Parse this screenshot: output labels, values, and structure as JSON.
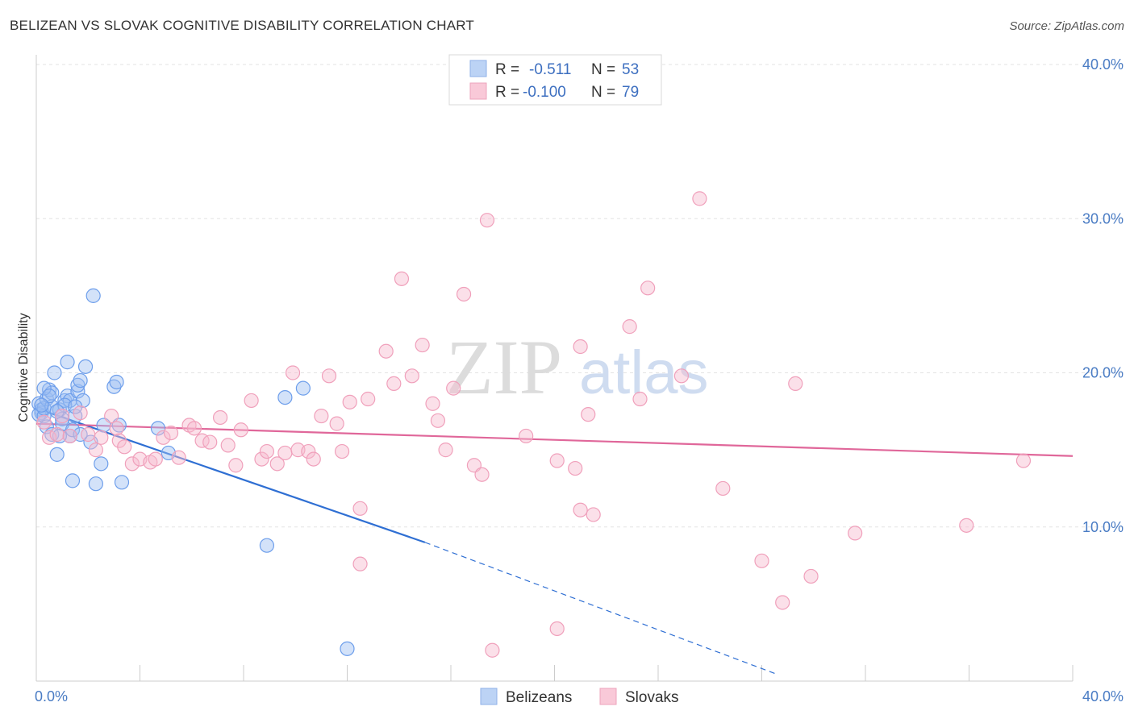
{
  "title": "BELIZEAN VS SLOVAK COGNITIVE DISABILITY CORRELATION CHART",
  "source": "Source: ZipAtlas.com",
  "watermark": {
    "zip": "ZIP",
    "atlas": "atlas"
  },
  "legend": {
    "r_label": "R =",
    "n_label": "N =",
    "rows": [
      {
        "series": "Belizeans",
        "r": "-0.511",
        "n": "53"
      },
      {
        "series": "Slovaks",
        "r": "-0.100",
        "n": "79"
      }
    ]
  },
  "chart_data": {
    "type": "scatter",
    "title": "BELIZEAN VS SLOVAK COGNITIVE DISABILITY CORRELATION CHART",
    "xlabel": "",
    "ylabel": "Cognitive Disability",
    "xlim": [
      0,
      40
    ],
    "ylim": [
      0,
      40
    ],
    "x_tick_labels": [
      "0.0%",
      "40.0%"
    ],
    "y_ticks": [
      10,
      20,
      30,
      40
    ],
    "y_tick_labels": [
      "10.0%",
      "20.0%",
      "30.0%",
      "40.0%"
    ],
    "grid": true,
    "legend_position": "bottom",
    "colors": {
      "Belizeans": "#6d9eeb",
      "Slovaks": "#f4a3bd",
      "Belizeans_line": "#2f6fd3",
      "Slovaks_line": "#e0679a"
    },
    "series": [
      {
        "name": "Belizeans",
        "points": [
          [
            0.1,
            18.0
          ],
          [
            0.2,
            17.6
          ],
          [
            0.2,
            17.4
          ],
          [
            0.1,
            17.3
          ],
          [
            0.3,
            17.2
          ],
          [
            0.3,
            17.7
          ],
          [
            0.4,
            18.3
          ],
          [
            0.4,
            16.5
          ],
          [
            0.5,
            18.9
          ],
          [
            0.6,
            18.7
          ],
          [
            0.6,
            17.8
          ],
          [
            0.7,
            20.0
          ],
          [
            0.6,
            16.0
          ],
          [
            0.8,
            14.7
          ],
          [
            0.9,
            17.6
          ],
          [
            1.0,
            17.0
          ],
          [
            1.0,
            16.7
          ],
          [
            1.1,
            18.2
          ],
          [
            1.2,
            20.7
          ],
          [
            1.2,
            18.5
          ],
          [
            1.3,
            18.2
          ],
          [
            1.3,
            15.9
          ],
          [
            1.4,
            13.0
          ],
          [
            1.4,
            16.3
          ],
          [
            1.5,
            17.2
          ],
          [
            1.6,
            18.8
          ],
          [
            1.6,
            19.2
          ],
          [
            1.7,
            19.5
          ],
          [
            1.8,
            18.2
          ],
          [
            1.9,
            20.4
          ],
          [
            2.1,
            15.5
          ],
          [
            2.2,
            25.0
          ],
          [
            2.3,
            12.8
          ],
          [
            2.5,
            14.1
          ],
          [
            2.6,
            16.6
          ],
          [
            3.0,
            19.1
          ],
          [
            3.1,
            19.4
          ],
          [
            3.2,
            16.6
          ],
          [
            3.3,
            12.9
          ],
          [
            4.7,
            16.4
          ],
          [
            5.1,
            14.8
          ],
          [
            8.9,
            8.8
          ],
          [
            9.6,
            18.4
          ],
          [
            10.3,
            19.0
          ],
          [
            12.0,
            2.1
          ],
          [
            0.3,
            19.0
          ],
          [
            0.5,
            18.5
          ],
          [
            0.9,
            15.9
          ],
          [
            1.1,
            17.9
          ],
          [
            1.5,
            17.8
          ],
          [
            0.2,
            17.9
          ],
          [
            0.8,
            17.5
          ],
          [
            1.7,
            16.0
          ]
        ]
      },
      {
        "name": "Slovaks",
        "points": [
          [
            0.3,
            16.8
          ],
          [
            0.5,
            15.8
          ],
          [
            0.8,
            16.0
          ],
          [
            1.0,
            17.2
          ],
          [
            1.3,
            15.9
          ],
          [
            1.7,
            17.4
          ],
          [
            2.0,
            16.0
          ],
          [
            2.3,
            15.0
          ],
          [
            2.5,
            15.8
          ],
          [
            2.9,
            17.2
          ],
          [
            3.1,
            16.4
          ],
          [
            3.2,
            15.6
          ],
          [
            3.4,
            15.2
          ],
          [
            3.7,
            14.1
          ],
          [
            4.0,
            14.4
          ],
          [
            4.4,
            14.2
          ],
          [
            4.6,
            14.4
          ],
          [
            4.9,
            15.8
          ],
          [
            5.2,
            16.1
          ],
          [
            5.5,
            14.5
          ],
          [
            5.9,
            16.6
          ],
          [
            6.1,
            16.4
          ],
          [
            6.4,
            15.6
          ],
          [
            6.7,
            15.5
          ],
          [
            7.1,
            17.1
          ],
          [
            7.4,
            15.3
          ],
          [
            7.7,
            14.0
          ],
          [
            7.9,
            16.3
          ],
          [
            8.3,
            18.2
          ],
          [
            8.7,
            14.4
          ],
          [
            8.9,
            14.9
          ],
          [
            9.3,
            14.1
          ],
          [
            9.6,
            14.8
          ],
          [
            9.9,
            20.0
          ],
          [
            10.1,
            15.0
          ],
          [
            10.5,
            14.9
          ],
          [
            10.7,
            14.4
          ],
          [
            11.0,
            17.2
          ],
          [
            11.3,
            19.8
          ],
          [
            11.6,
            16.7
          ],
          [
            11.8,
            14.9
          ],
          [
            12.1,
            18.1
          ],
          [
            12.5,
            11.2
          ],
          [
            12.8,
            18.3
          ],
          [
            13.5,
            21.4
          ],
          [
            13.8,
            19.3
          ],
          [
            14.1,
            26.1
          ],
          [
            14.5,
            19.8
          ],
          [
            14.9,
            21.8
          ],
          [
            15.3,
            18.0
          ],
          [
            15.5,
            16.9
          ],
          [
            15.8,
            15.0
          ],
          [
            16.1,
            19.0
          ],
          [
            16.5,
            25.1
          ],
          [
            16.9,
            14.0
          ],
          [
            17.2,
            13.4
          ],
          [
            17.4,
            29.9
          ],
          [
            18.9,
            15.9
          ],
          [
            20.1,
            14.3
          ],
          [
            20.8,
            13.8
          ],
          [
            21.0,
            21.7
          ],
          [
            21.3,
            17.3
          ],
          [
            21.0,
            11.1
          ],
          [
            21.5,
            10.8
          ],
          [
            22.9,
            23.0
          ],
          [
            23.3,
            18.3
          ],
          [
            23.6,
            25.5
          ],
          [
            24.9,
            19.8
          ],
          [
            25.6,
            31.3
          ],
          [
            26.5,
            12.5
          ],
          [
            28.0,
            7.8
          ],
          [
            28.8,
            5.1
          ],
          [
            29.3,
            19.3
          ],
          [
            29.9,
            6.8
          ],
          [
            31.6,
            9.6
          ],
          [
            35.9,
            10.1
          ],
          [
            38.1,
            14.3
          ],
          [
            17.6,
            2.0
          ],
          [
            20.1,
            3.4
          ],
          [
            12.5,
            7.6
          ]
        ]
      }
    ],
    "trend_lines": [
      {
        "series": "Belizeans",
        "x": [
          0,
          15
        ],
        "y": [
          17.7,
          9.0
        ],
        "dashed_to": [
          28.5,
          0.5
        ]
      },
      {
        "series": "Slovaks",
        "x": [
          0,
          40
        ],
        "y": [
          16.7,
          14.6
        ]
      }
    ]
  }
}
